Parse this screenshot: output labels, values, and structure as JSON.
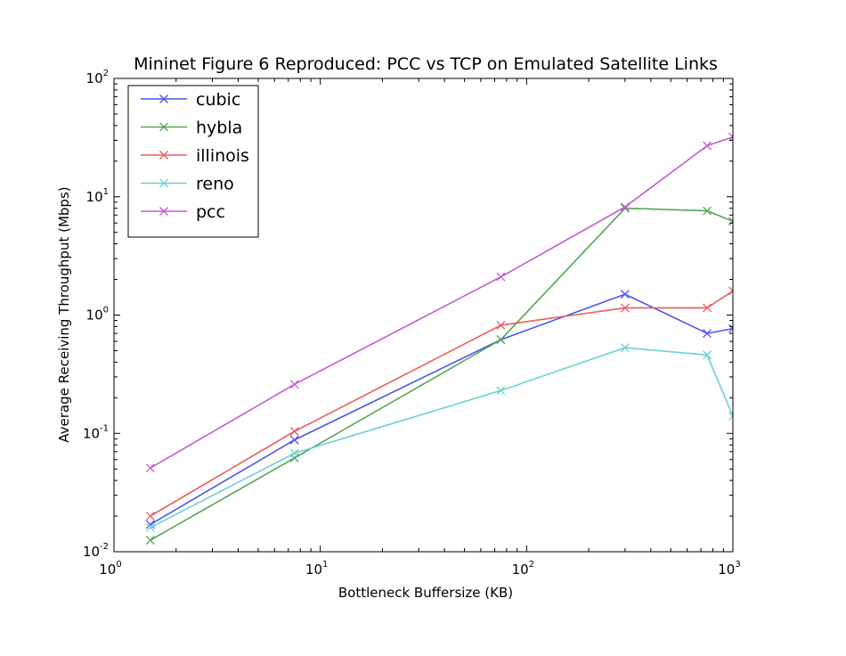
{
  "chart_data": {
    "type": "line",
    "title": "Mininet Figure 6 Reproduced: PCC vs TCP on Emulated Satellite Links",
    "xlabel": "Bottleneck Buffersize (KB)",
    "ylabel": "Average Receiving Throughput (Mbps)",
    "xscale": "log",
    "yscale": "log",
    "xlim": [
      1,
      1000
    ],
    "ylim": [
      0.01,
      100
    ],
    "x_ticks": [
      {
        "base": "10",
        "exp": "0"
      },
      {
        "base": "10",
        "exp": "1"
      },
      {
        "base": "10",
        "exp": "2"
      },
      {
        "base": "10",
        "exp": "3"
      }
    ],
    "y_ticks": [
      {
        "base": "10",
        "exp": "-2"
      },
      {
        "base": "10",
        "exp": "-1"
      },
      {
        "base": "10",
        "exp": "0"
      },
      {
        "base": "10",
        "exp": "1"
      },
      {
        "base": "10",
        "exp": "2"
      }
    ],
    "grid": false,
    "legend_position": "top-left",
    "marker": "x",
    "x": [
      1.5,
      7.5,
      75,
      300,
      750,
      1000
    ],
    "series": [
      {
        "name": "cubic",
        "color": "#4b57ee",
        "values": [
          0.017,
          0.088,
          0.62,
          1.5,
          0.7,
          0.77
        ]
      },
      {
        "name": "hybla",
        "color": "#57a557",
        "values": [
          0.0125,
          0.062,
          0.62,
          8.0,
          7.6,
          6.2
        ]
      },
      {
        "name": "illinois",
        "color": "#ef5b5b",
        "values": [
          0.02,
          0.104,
          0.82,
          1.15,
          1.15,
          1.6
        ]
      },
      {
        "name": "reno",
        "color": "#6bd1d1",
        "values": [
          0.016,
          0.068,
          0.23,
          0.53,
          0.46,
          0.14
        ]
      },
      {
        "name": "pcc",
        "color": "#c35bd6",
        "values": [
          0.051,
          0.26,
          2.1,
          8.2,
          27,
          32
        ]
      }
    ]
  }
}
